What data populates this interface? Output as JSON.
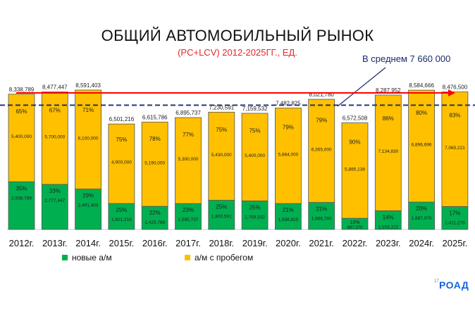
{
  "chart_data": {
    "type": "bar",
    "stacked": true,
    "title": "ОБЩИЙ АВТОМОБИЛЬНЫЙ РЫНОК",
    "subtitle": "(PC+LCV) 2012-2025ГГ., ЕД.",
    "categories": [
      "2012г.",
      "2013г.",
      "2014г.",
      "2015г.",
      "2016г.",
      "2017г.",
      "2018г.",
      "2019г.",
      "2020г.",
      "2021г.",
      "2022г.",
      "2023г.",
      "2024г.",
      "2025г."
    ],
    "totals": [
      "8,338,789",
      "8,477,447",
      "8,591,403",
      "6,501,216",
      "6,615,786",
      "6,895,737",
      "7,230,591",
      "7,159,532",
      "7,482,825",
      "8,021,780",
      "6,572,508",
      "8,287,952",
      "8,584,666",
      "8,476,500"
    ],
    "series": [
      {
        "name": "новые а/м",
        "color": "#00b050",
        "values": [
          2938789,
          2777447,
          2491403,
          1601216,
          1425786,
          1595737,
          1800591,
          1759532,
          1598825,
          1666780,
          687370,
          1153122,
          1687970,
          1411279
        ],
        "labels": [
          "2,938,789",
          "2,777,447",
          "2,491,403",
          "1,601,216",
          "1,425,786",
          "1,595,737",
          "1,800,591",
          "1,759,532",
          "1,598,825",
          "1,666,780",
          "687,370",
          "1,153,122",
          "1,687,970",
          "1,411,279"
        ],
        "pct": [
          "35%",
          "33%",
          "29%",
          "25%",
          "22%",
          "23%",
          "25%",
          "25%",
          "21%",
          "21%",
          "10%",
          "14%",
          "20%",
          "17%"
        ]
      },
      {
        "name": "а/м с пробегом",
        "color": "#ffc000",
        "values": [
          5400000,
          5700000,
          6100000,
          4900000,
          5190000,
          5300000,
          5430000,
          5400000,
          5884000,
          6355000,
          5885138,
          7134830,
          6896696,
          7065221
        ],
        "labels": [
          "5,400,000",
          "5,700,000",
          "6,100,000",
          "4,900,000",
          "5,190,000",
          "5,300,000",
          "5,430,000",
          "5,400,000",
          "5,884,000",
          "6,355,000",
          "5,885,138",
          "7,134,830",
          "6,896,696",
          "7,065,221"
        ],
        "pct": [
          "65%",
          "67%",
          "71%",
          "75%",
          "78%",
          "77%",
          "75%",
          "75%",
          "79%",
          "79%",
          "90%",
          "86%",
          "80%",
          "83%"
        ]
      }
    ],
    "average": {
      "value": 7660000,
      "label": "В среднем 7 660 000",
      "color": "#1a2a6c"
    },
    "trend_line_color": "#ff0000",
    "legend": "bottom",
    "grid": false
  },
  "footer": {
    "page": "17",
    "logo": "РОАД"
  }
}
